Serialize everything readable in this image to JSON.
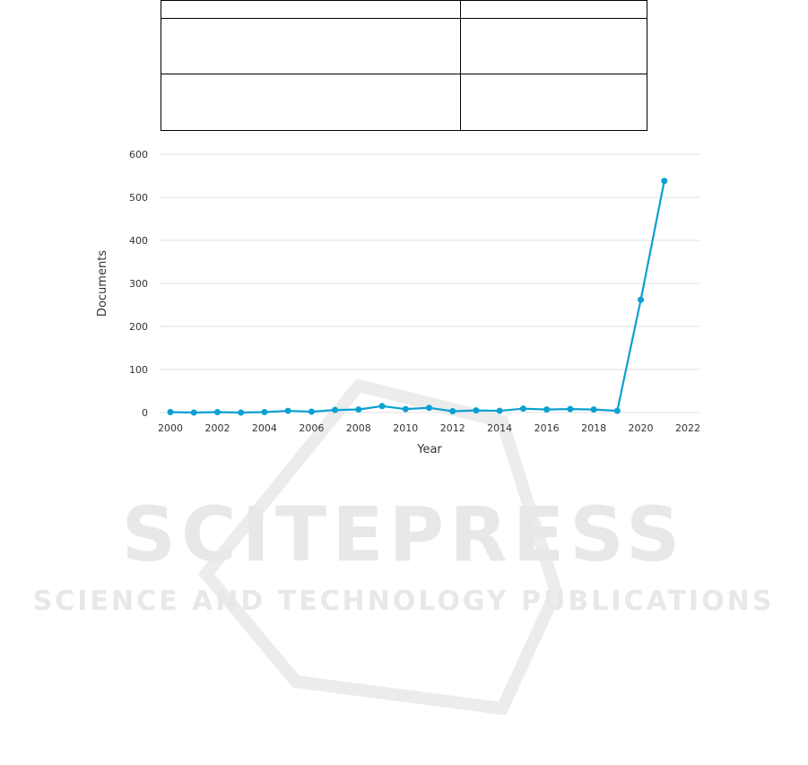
{
  "watermark": {
    "title": "SCITEPRESS",
    "subtitle": "SCIENCE AND TECHNOLOGY PUBLICATIONS"
  },
  "table": {
    "rows": [
      [
        "",
        ""
      ],
      [
        "",
        ""
      ],
      [
        "",
        ""
      ]
    ]
  },
  "chart_data": {
    "type": "line",
    "title": "",
    "xlabel": "Year",
    "ylabel": "Documents",
    "x": [
      2000,
      2001,
      2002,
      2003,
      2004,
      2005,
      2006,
      2007,
      2008,
      2009,
      2010,
      2011,
      2012,
      2013,
      2014,
      2015,
      2016,
      2017,
      2018,
      2019,
      2020,
      2021
    ],
    "values": [
      1,
      0,
      1,
      0,
      1,
      4,
      2,
      6,
      7,
      15,
      8,
      11,
      3,
      5,
      4,
      9,
      7,
      8,
      7,
      4,
      262,
      538
    ],
    "xlim": [
      2000,
      2022
    ],
    "ylim": [
      0,
      600
    ],
    "xticks": [
      "2000",
      "2002",
      "2004",
      "2006",
      "2008",
      "2010",
      "2012",
      "2014",
      "2016",
      "2018",
      "2020",
      "2022"
    ],
    "yticks": [
      "0",
      "100",
      "200",
      "300",
      "400",
      "500",
      "600"
    ],
    "grid": "horizontal",
    "color": "#0aa0d2"
  }
}
